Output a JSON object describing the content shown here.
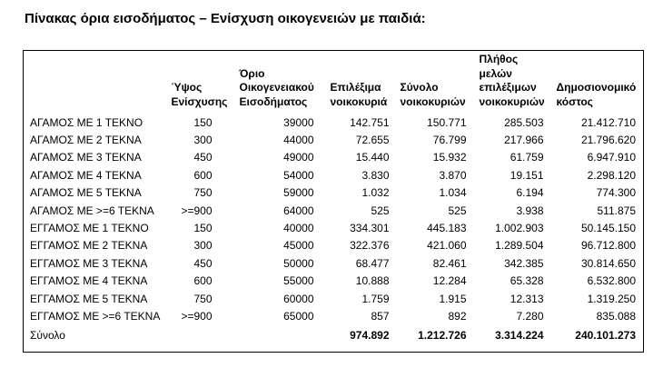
{
  "page": {
    "title": "Πίνακας όρια εισοδήματος – Ενίσχυση οικογενειών με παιδιά:"
  },
  "colors": {
    "text": "#000000",
    "table_border": "#000000",
    "background": "#ffffff"
  },
  "table": {
    "columns": [
      {
        "name": "column-header-category",
        "label": ""
      },
      {
        "name": "column-header-aid-amount",
        "label": "Ύψος Ενίσχυσης"
      },
      {
        "name": "column-header-family-income-limit",
        "label": "Όριο Οικογενειακού Εισοδήματος"
      },
      {
        "name": "column-header-eligible-households",
        "label": "Επιλέξιμα νοικοκυριά"
      },
      {
        "name": "column-header-total-households",
        "label": "Σύνολο νοικοκυριών"
      },
      {
        "name": "column-header-eligible-household-members",
        "label": "Πλήθος μελών επιλέξιμων νοικοκυριών"
      },
      {
        "name": "column-header-fiscal-cost",
        "label": "Δημοσιονομικό κόστος"
      }
    ],
    "cell_names": [
      "row-label",
      "cell-aid-amount",
      "cell-family-income-limit",
      "cell-eligible-households",
      "cell-total-households",
      "cell-eligible-household-members",
      "cell-fiscal-cost"
    ],
    "rows": [
      {
        "label": "ΑΓΑΜΟΣ ΜΕ 1 ΤΕΚΝΟ",
        "values": [
          "150",
          "39000",
          "142.751",
          "150.771",
          "285.503",
          "21.412.710"
        ]
      },
      {
        "label": "ΑΓΑΜΟΣ ΜΕ 2 ΤΕΚΝΑ",
        "values": [
          "300",
          "44000",
          "72.655",
          "76.799",
          "217.966",
          "21.796.620"
        ]
      },
      {
        "label": "ΑΓΑΜΟΣ ΜΕ 3 ΤΕΚΝΑ",
        "values": [
          "450",
          "49000",
          "15.440",
          "15.932",
          "61.759",
          "6.947.910"
        ]
      },
      {
        "label": "ΑΓΑΜΟΣ ΜΕ 4 ΤΕΚΝΑ",
        "values": [
          "600",
          "54000",
          "3.830",
          "3.870",
          "19.151",
          "2.298.120"
        ]
      },
      {
        "label": "ΑΓΑΜΟΣ ΜΕ 5 ΤΕΚΝΑ",
        "values": [
          "750",
          "59000",
          "1.032",
          "1.034",
          "6.194",
          "774.300"
        ]
      },
      {
        "label": "ΑΓΑΜΟΣ ΜΕ >=6 ΤΕΚΝΑ",
        "values": [
          ">=900",
          "64000",
          "525",
          "525",
          "3.938",
          "511.875"
        ]
      },
      {
        "label": "ΕΓΓΑΜΟΣ ΜΕ 1 ΤΕΚΝΟ",
        "values": [
          "150",
          "40000",
          "334.301",
          "445.183",
          "1.002.903",
          "50.145.150"
        ]
      },
      {
        "label": "ΕΓΓΑΜΟΣ ΜΕ 2 ΤΕΚΝΑ",
        "values": [
          "300",
          "45000",
          "322.376",
          "421.060",
          "1.289.504",
          "96.712.800"
        ]
      },
      {
        "label": "ΕΓΓΑΜΟΣ ΜΕ 3 ΤΕΚΝΑ",
        "values": [
          "450",
          "50000",
          "68.477",
          "82.461",
          "342.385",
          "30.814.650"
        ]
      },
      {
        "label": "ΕΓΓΑΜΟΣ ΜΕ 4 ΤΕΚΝΑ",
        "values": [
          "600",
          "55000",
          "10.888",
          "12.284",
          "65.328",
          "6.532.800"
        ]
      },
      {
        "label": "ΕΓΓΑΜΟΣ ΜΕ 5 ΤΕΚΝΑ",
        "values": [
          "750",
          "60000",
          "1.759",
          "1.915",
          "12.313",
          "1.319.250"
        ]
      },
      {
        "label": "ΕΓΓΑΜΟΣ ΜΕ >=6 ΤΕΚΝΑ",
        "values": [
          ">=900",
          "65000",
          "857",
          "892",
          "7.280",
          "835.088"
        ]
      }
    ],
    "total_row": {
      "label": "Σύνολο",
      "values": [
        "",
        "",
        "974.892",
        "1.212.726",
        "3.314.224",
        "240.101.273"
      ]
    }
  }
}
